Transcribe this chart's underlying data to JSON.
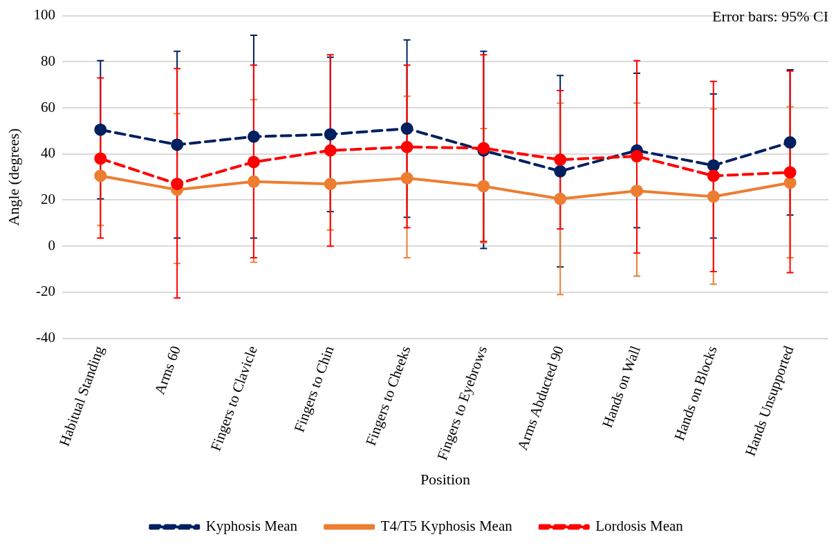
{
  "chart_data": {
    "type": "line",
    "xlabel": "Position",
    "ylabel": "Angle (degrees)",
    "categories": [
      "Habitual Standing",
      "Arms 60",
      "Fingers to Clavicle",
      "Fingers to Chin",
      "Fingers to Cheeks",
      "Fingers to Eyebrows",
      "Arms Abducted 90",
      "Hands on Wall",
      "Hands on Blocks",
      "Hands Unsupported"
    ],
    "series": [
      {
        "name": "Kyphosis Mean",
        "color": "#002060",
        "line_style": "dashed",
        "values": [
          50.5,
          44,
          47.5,
          48.5,
          51,
          41.5,
          32.5,
          41.5,
          35,
          45
        ],
        "errors": [
          [
            20.5,
            80.5
          ],
          [
            3.5,
            84.5
          ],
          [
            3.5,
            91.5
          ],
          [
            15,
            82
          ],
          [
            12.5,
            89.5
          ],
          [
            -1,
            84.5
          ],
          [
            -9,
            74
          ],
          [
            8,
            75
          ],
          [
            3.5,
            66
          ],
          [
            13.5,
            76.5
          ]
        ]
      },
      {
        "name": "T4/T5 Kyphosis Mean",
        "color": "#ed7d31",
        "line_style": "solid",
        "values": [
          30.5,
          24.5,
          28,
          27,
          29.5,
          26,
          20.5,
          24,
          21.5,
          27.5
        ],
        "errors": [
          [
            9,
            52
          ],
          [
            -7.5,
            57.5
          ],
          [
            -7,
            63.5
          ],
          [
            7,
            47
          ],
          [
            -5,
            65
          ],
          [
            1.5,
            51
          ],
          [
            -21,
            62
          ],
          [
            -13,
            62
          ],
          [
            -16.5,
            59.5
          ],
          [
            -5,
            60.5
          ]
        ]
      },
      {
        "name": "Lordosis Mean",
        "color": "#ff0000",
        "line_style": "dashed",
        "values": [
          38,
          27,
          36.5,
          41.5,
          43,
          42.5,
          37.5,
          39,
          30.5,
          32
        ],
        "errors": [
          [
            3.5,
            73
          ],
          [
            -22.5,
            77
          ],
          [
            -5,
            78.5
          ],
          [
            0,
            83
          ],
          [
            8,
            78.5
          ],
          [
            2,
            83
          ],
          [
            7.5,
            67.5
          ],
          [
            -3,
            80.5
          ],
          [
            -11,
            71.5
          ],
          [
            -11.5,
            76
          ]
        ]
      }
    ],
    "ylim": [
      -40,
      100
    ],
    "yticks": [
      -40,
      -20,
      0,
      20,
      40,
      60,
      80,
      100
    ],
    "grid": "y",
    "legend": "bottom",
    "marker": "circle",
    "annotations": [
      "Error bars: 95% CI"
    ]
  }
}
